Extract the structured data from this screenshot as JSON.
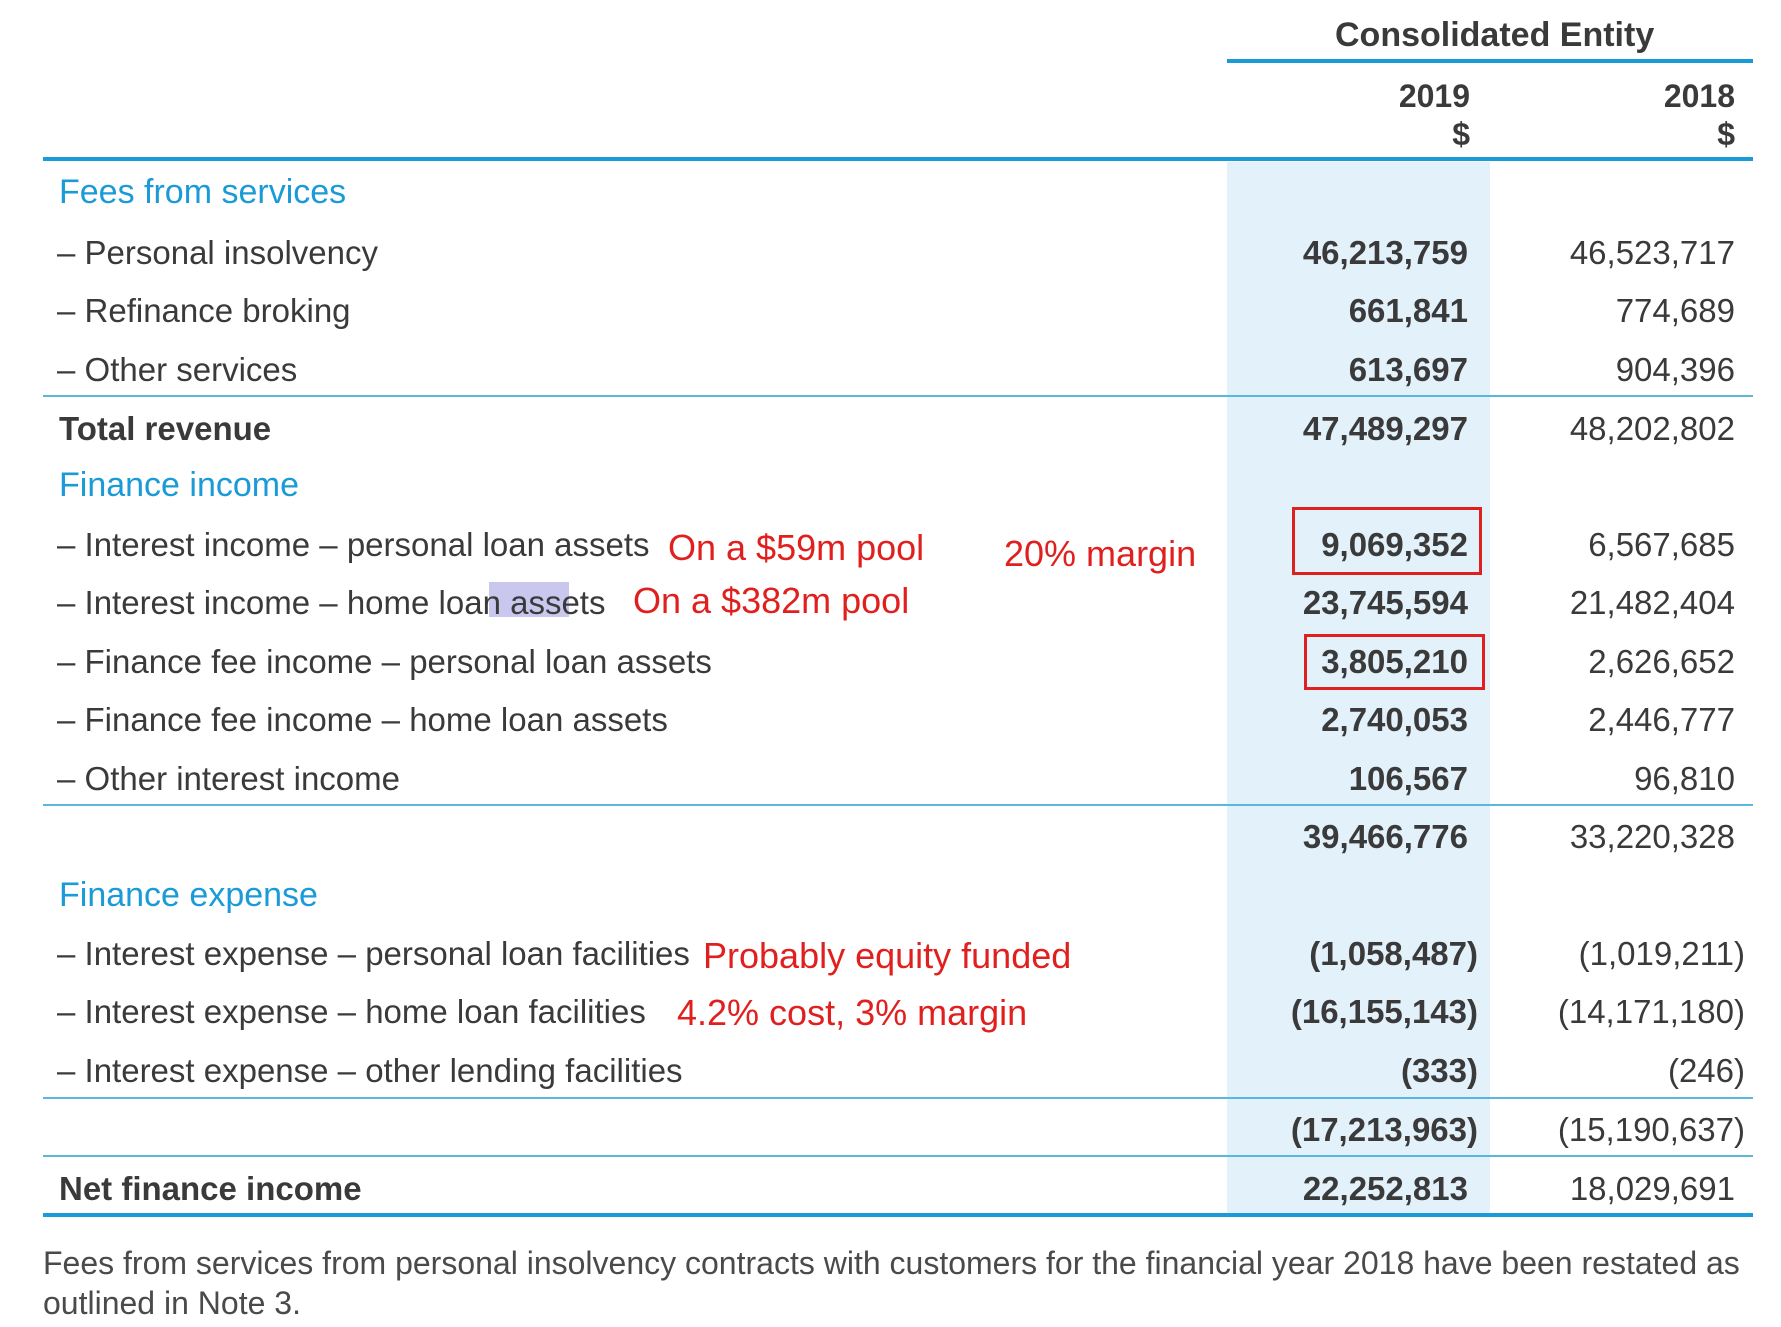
{
  "header": {
    "entity": "Consolidated Entity",
    "year_current": "2019",
    "year_prior": "2018",
    "currency_current": "$",
    "currency_prior": "$"
  },
  "sections": {
    "fees": "Fees from services",
    "finance_income": "Finance income",
    "finance_expense": "Finance expense"
  },
  "rows": {
    "personal_insolvency": {
      "label": "– Personal insolvency",
      "y2019": "46,213,759",
      "y2018": "46,523,717"
    },
    "refinance_broking": {
      "label": "– Refinance broking",
      "y2019": "661,841",
      "y2018": "774,689"
    },
    "other_services": {
      "label": "– Other services",
      "y2019": "613,697",
      "y2018": "904,396"
    },
    "total_revenue": {
      "label": "Total revenue",
      "y2019": "47,489,297",
      "y2018": "48,202,802"
    },
    "int_personal": {
      "label": "– Interest income – personal loan assets",
      "y2019": "9,069,352",
      "y2018": "6,567,685"
    },
    "int_home": {
      "label": "– Interest income – home loan assets",
      "y2019": "23,745,594",
      "y2018": "21,482,404"
    },
    "fee_personal": {
      "label": "– Finance fee income – personal loan assets",
      "y2019": "3,805,210",
      "y2018": "2,626,652"
    },
    "fee_home": {
      "label": "– Finance fee income – home loan assets",
      "y2019": "2,740,053",
      "y2018": "2,446,777"
    },
    "other_interest": {
      "label": "– Other interest income",
      "y2019": "106,567",
      "y2018": "96,810"
    },
    "finance_income_total": {
      "y2019": "39,466,776",
      "y2018": "33,220,328"
    },
    "exp_personal": {
      "label": "– Interest expense – personal loan facilities",
      "y2019": "(1,058,487)",
      "y2018": "(1,019,211)"
    },
    "exp_home": {
      "label": "– Interest expense – home loan facilities",
      "y2019": "(16,155,143)",
      "y2018": "(14,171,180)"
    },
    "exp_other": {
      "label": "– Interest expense – other lending facilities",
      "y2019": "(333)",
      "y2018": "(246)"
    },
    "finance_expense_total": {
      "y2019": "(17,213,963)",
      "y2018": "(15,190,637)"
    },
    "net_finance_income": {
      "label": "Net finance income",
      "y2019": "22,252,813",
      "y2018": "18,029,691"
    }
  },
  "annotations": {
    "pool_59": "On a $59m pool",
    "margin_20": "20% margin",
    "pool_382": "On a $382m pool",
    "equity_funded": "Probably equity funded",
    "cost_margin": "4.2% cost, 3% margin"
  },
  "footnote": "Fees from services from personal insolvency contracts with customers for the financial year 2018 have been restated as outlined in Note 3.",
  "colors": {
    "section_blue": "#1a9bd7",
    "column_shade": "#e3f1fb",
    "annotation_red": "#e0201e",
    "text_highlight": "#c9c7ee"
  }
}
